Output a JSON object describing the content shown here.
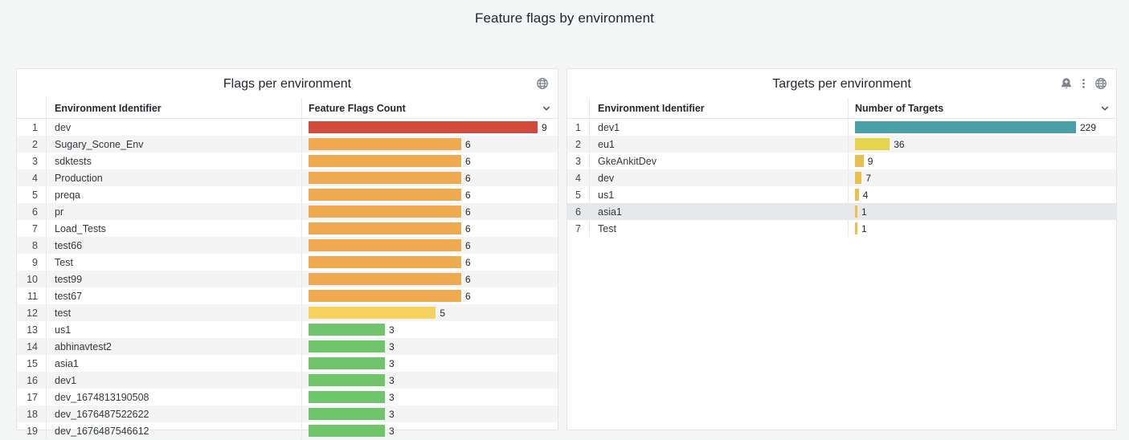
{
  "page": {
    "title": "Feature flags by environment",
    "background_color": "#f4f5f5",
    "panel_background": "#ffffff"
  },
  "panels": [
    {
      "title": "Flags per environment",
      "header_icons": [
        "globe"
      ],
      "columns": {
        "name": "Environment Identifier",
        "value": "Feature Flags Count",
        "sort_icon": "chevron-down"
      },
      "max": 9,
      "rows": [
        {
          "name": "dev",
          "value": 9,
          "color": "#d24a3c"
        },
        {
          "name": "Sugary_Scone_Env",
          "value": 6,
          "color": "#efa94f"
        },
        {
          "name": "sdktests",
          "value": 6,
          "color": "#efa94f"
        },
        {
          "name": "Production",
          "value": 6,
          "color": "#efa94f"
        },
        {
          "name": "preqa",
          "value": 6,
          "color": "#efa94f"
        },
        {
          "name": "pr",
          "value": 6,
          "color": "#efa94f"
        },
        {
          "name": "Load_Tests",
          "value": 6,
          "color": "#efa94f"
        },
        {
          "name": "test66",
          "value": 6,
          "color": "#efa94f"
        },
        {
          "name": "Test",
          "value": 6,
          "color": "#efa94f"
        },
        {
          "name": "test99",
          "value": 6,
          "color": "#efa94f"
        },
        {
          "name": "test67",
          "value": 6,
          "color": "#efa94f"
        },
        {
          "name": "test",
          "value": 5,
          "color": "#f4d25c"
        },
        {
          "name": "us1",
          "value": 3,
          "color": "#70c46a"
        },
        {
          "name": "abhinavtest2",
          "value": 3,
          "color": "#70c46a"
        },
        {
          "name": "asia1",
          "value": 3,
          "color": "#70c46a"
        },
        {
          "name": "dev1",
          "value": 3,
          "color": "#70c46a"
        },
        {
          "name": "dev_1674813190508",
          "value": 3,
          "color": "#70c46a"
        },
        {
          "name": "dev_1676487522622",
          "value": 3,
          "color": "#70c46a"
        },
        {
          "name": "dev_1676487546612",
          "value": 3,
          "color": "#70c46a"
        }
      ]
    },
    {
      "title": "Targets per environment",
      "header_icons": [
        "create-alert-bell",
        "kebab-menu",
        "globe"
      ],
      "columns": {
        "name": "Environment Identifier",
        "value": "Number of Targets",
        "sort_icon": "chevron-down"
      },
      "max": 229,
      "rows": [
        {
          "name": "dev1",
          "value": 229,
          "color": "#4aa0a9"
        },
        {
          "name": "eu1",
          "value": 36,
          "color": "#e5d44e"
        },
        {
          "name": "GkeAnkitDev",
          "value": 9,
          "color": "#e9c04f"
        },
        {
          "name": "dev",
          "value": 7,
          "color": "#e9c04f"
        },
        {
          "name": "us1",
          "value": 4,
          "color": "#e9c04f"
        },
        {
          "name": "asia1",
          "value": 1,
          "color": "#e9c04f",
          "highlighted": true
        },
        {
          "name": "Test",
          "value": 1,
          "color": "#e9c04f"
        }
      ]
    }
  ],
  "chart_data": [
    {
      "type": "bar",
      "title": "Flags per environment",
      "xlabel": "Feature Flags Count",
      "ylabel": "Environment Identifier",
      "categories": [
        "dev",
        "Sugary_Scone_Env",
        "sdktests",
        "Production",
        "preqa",
        "pr",
        "Load_Tests",
        "test66",
        "Test",
        "test99",
        "test67",
        "test",
        "us1",
        "abhinavtest2",
        "asia1",
        "dev1",
        "dev_1674813190508",
        "dev_1676487522622",
        "dev_1676487546612"
      ],
      "values": [
        9,
        6,
        6,
        6,
        6,
        6,
        6,
        6,
        6,
        6,
        6,
        5,
        3,
        3,
        3,
        3,
        3,
        3,
        3
      ],
      "xlim": [
        0,
        9
      ]
    },
    {
      "type": "bar",
      "title": "Targets per environment",
      "xlabel": "Number of Targets",
      "ylabel": "Environment Identifier",
      "categories": [
        "dev1",
        "eu1",
        "GkeAnkitDev",
        "dev",
        "us1",
        "asia1",
        "Test"
      ],
      "values": [
        229,
        36,
        9,
        7,
        4,
        1,
        1
      ],
      "xlim": [
        0,
        229
      ]
    }
  ]
}
